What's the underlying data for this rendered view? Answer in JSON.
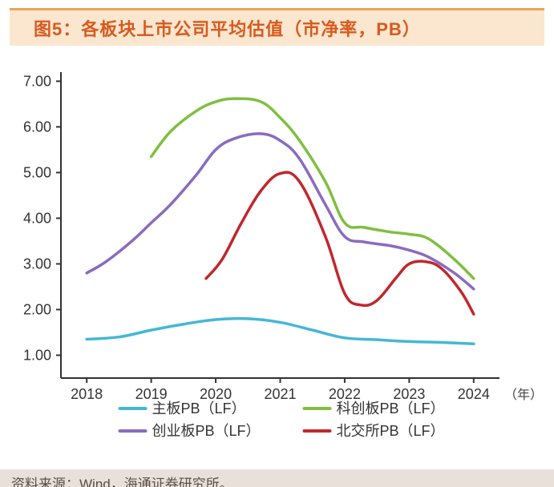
{
  "title": "图5：各板块上市公司平均估值（市净率，PB）",
  "footer": "资料来源：Wind，海通证券研究所。",
  "chart": {
    "type": "line",
    "background_color": "#ffffff",
    "xlim": [
      2017.6,
      2024.4
    ],
    "ylim": [
      0.5,
      7.2
    ],
    "yticks": [
      1.0,
      2.0,
      3.0,
      4.0,
      5.0,
      6.0,
      7.0
    ],
    "ytick_labels": [
      "1.00",
      "2.00",
      "3.00",
      "4.00",
      "5.00",
      "6.00",
      "7.00"
    ],
    "xticks": [
      2018,
      2019,
      2020,
      2021,
      2022,
      2023,
      2024
    ],
    "xtick_labels": [
      "2018",
      "2019",
      "2020",
      "2021",
      "2022",
      "2023",
      "2024"
    ],
    "x_unit_label": "（年）",
    "axis_color": "#333333",
    "axis_width": 2,
    "line_width": 3.5,
    "series": [
      {
        "name": "主板PB（LF）",
        "color": "#45b7d6",
        "points": [
          [
            2018,
            1.35
          ],
          [
            2018.5,
            1.4
          ],
          [
            2019,
            1.55
          ],
          [
            2019.5,
            1.68
          ],
          [
            2020,
            1.78
          ],
          [
            2020.5,
            1.8
          ],
          [
            2021,
            1.72
          ],
          [
            2021.5,
            1.55
          ],
          [
            2022,
            1.38
          ],
          [
            2022.5,
            1.34
          ],
          [
            2023,
            1.3
          ],
          [
            2023.5,
            1.28
          ],
          [
            2024,
            1.25
          ]
        ]
      },
      {
        "name": "科创板PB（LF）",
        "color": "#7fbf3f",
        "points": [
          [
            2019,
            5.35
          ],
          [
            2019.3,
            5.9
          ],
          [
            2019.7,
            6.35
          ],
          [
            2020,
            6.55
          ],
          [
            2020.3,
            6.62
          ],
          [
            2020.7,
            6.55
          ],
          [
            2021,
            6.2
          ],
          [
            2021.3,
            5.7
          ],
          [
            2021.7,
            4.8
          ],
          [
            2022,
            3.9
          ],
          [
            2022.3,
            3.8
          ],
          [
            2022.7,
            3.7
          ],
          [
            2023,
            3.65
          ],
          [
            2023.3,
            3.55
          ],
          [
            2023.7,
            3.1
          ],
          [
            2024,
            2.68
          ]
        ]
      },
      {
        "name": "创业板PB（LF）",
        "color": "#8a6bbf",
        "points": [
          [
            2018,
            2.8
          ],
          [
            2018.3,
            3.05
          ],
          [
            2018.7,
            3.5
          ],
          [
            2019,
            3.9
          ],
          [
            2019.3,
            4.3
          ],
          [
            2019.7,
            4.95
          ],
          [
            2020,
            5.5
          ],
          [
            2020.3,
            5.75
          ],
          [
            2020.7,
            5.85
          ],
          [
            2021,
            5.7
          ],
          [
            2021.3,
            5.3
          ],
          [
            2021.7,
            4.3
          ],
          [
            2022,
            3.6
          ],
          [
            2022.3,
            3.48
          ],
          [
            2022.7,
            3.4
          ],
          [
            2023,
            3.3
          ],
          [
            2023.3,
            3.15
          ],
          [
            2023.7,
            2.8
          ],
          [
            2024,
            2.45
          ]
        ]
      },
      {
        "name": "北交所PB（LF）",
        "color": "#c1272d",
        "points": [
          [
            2019.85,
            2.68
          ],
          [
            2020.1,
            3.1
          ],
          [
            2020.4,
            3.9
          ],
          [
            2020.7,
            4.6
          ],
          [
            2021,
            4.98
          ],
          [
            2021.3,
            4.8
          ],
          [
            2021.7,
            3.6
          ],
          [
            2022,
            2.35
          ],
          [
            2022.25,
            2.1
          ],
          [
            2022.5,
            2.2
          ],
          [
            2022.8,
            2.7
          ],
          [
            2023,
            3.0
          ],
          [
            2023.25,
            3.05
          ],
          [
            2023.5,
            2.9
          ],
          [
            2023.8,
            2.4
          ],
          [
            2024,
            1.9
          ]
        ]
      }
    ],
    "legend_layout": [
      [
        0,
        1
      ],
      [
        2,
        3
      ]
    ]
  }
}
